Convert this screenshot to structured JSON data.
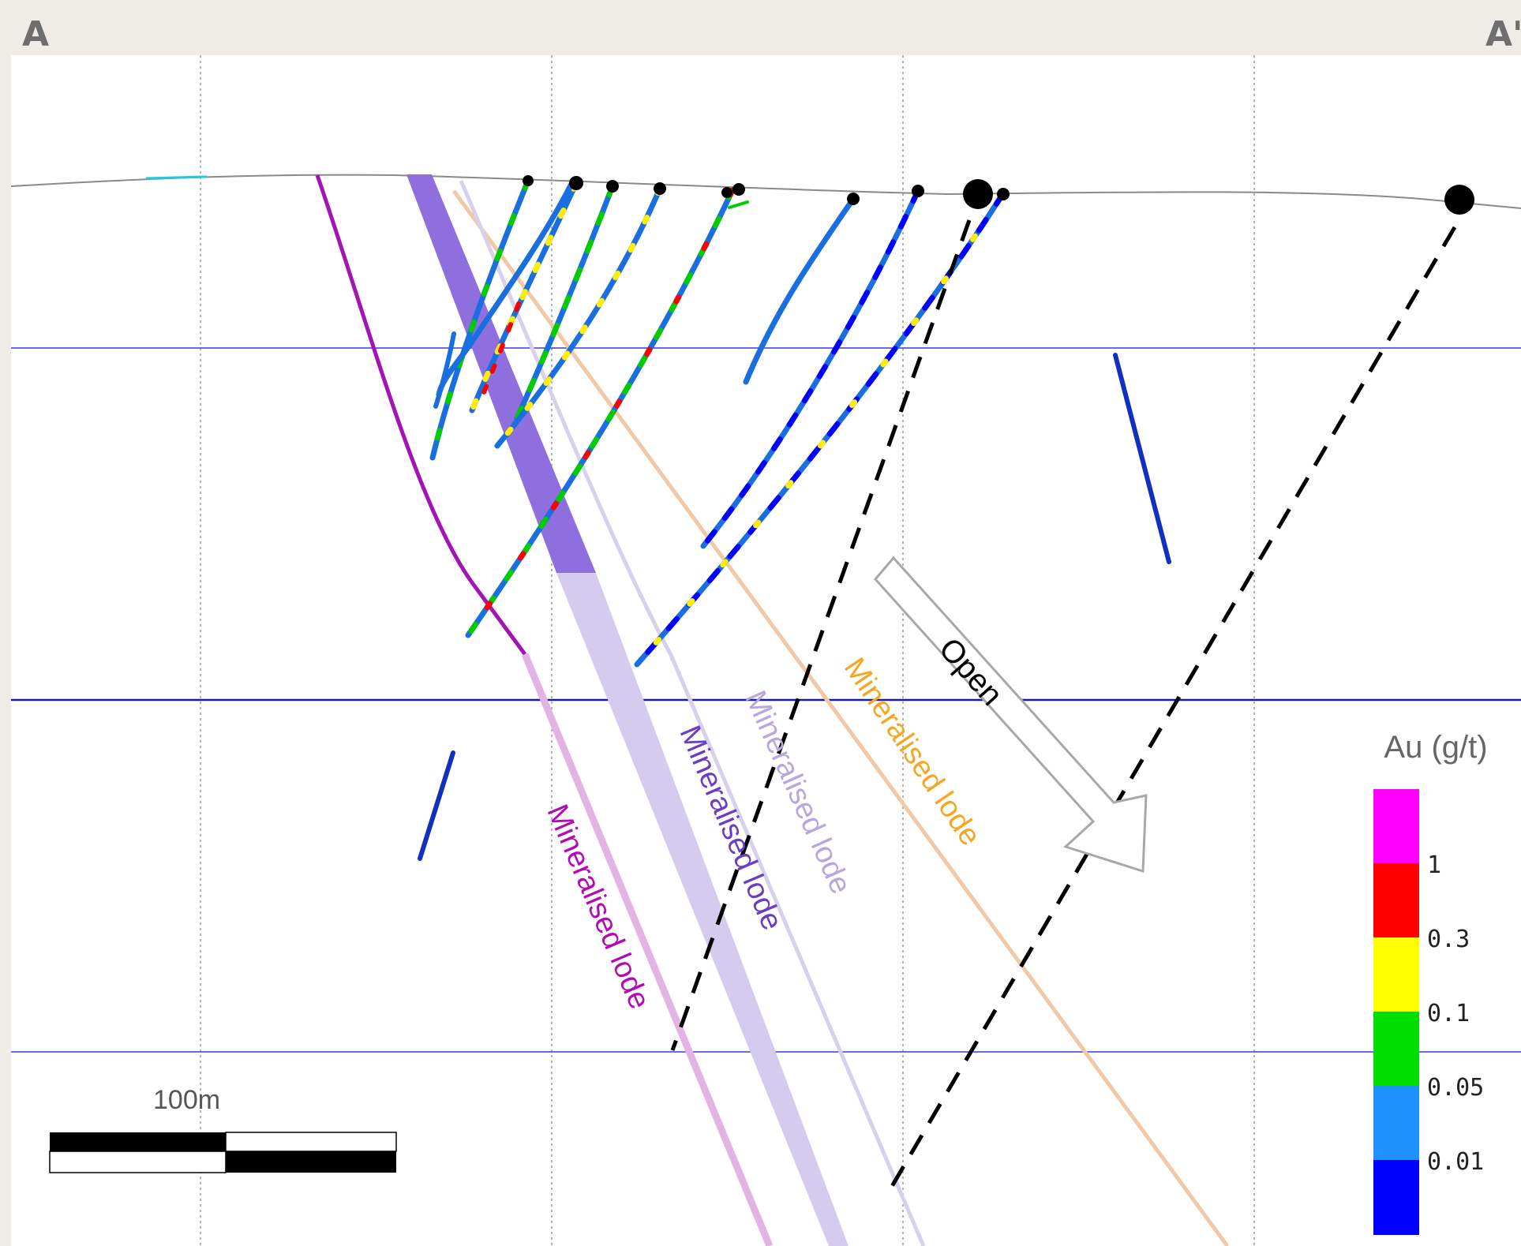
{
  "section": {
    "start_label": "A",
    "end_label": "A'"
  },
  "lodes": [
    {
      "label": "Mineralised lode",
      "color": "#b40ab4"
    },
    {
      "label": "Mineralised lode",
      "color": "#6a3dc2"
    },
    {
      "label": "Mineralised lode",
      "color": "#b9a6dc"
    },
    {
      "label": "Mineralised lode",
      "color": "#f5a623"
    }
  ],
  "open_arrow": {
    "label": "Open"
  },
  "scale_bar": {
    "label": "100m"
  },
  "legend": {
    "title": "Au (g/t)",
    "bins": [
      {
        "color": "#ff00ff"
      },
      {
        "color": "#ff0000"
      },
      {
        "color": "#ffff00"
      },
      {
        "color": "#00dd00"
      },
      {
        "color": "#1e90ff"
      },
      {
        "color": "#0000ff"
      }
    ],
    "ticks": [
      "1",
      "0.3",
      "0.1",
      "0.05",
      "0.01"
    ]
  },
  "colors": {
    "background": "#efece8",
    "panel": "#ffffff",
    "grid": "#9a9a9a",
    "level_line": "#1a1aa0",
    "dashed_line": "#000000"
  }
}
